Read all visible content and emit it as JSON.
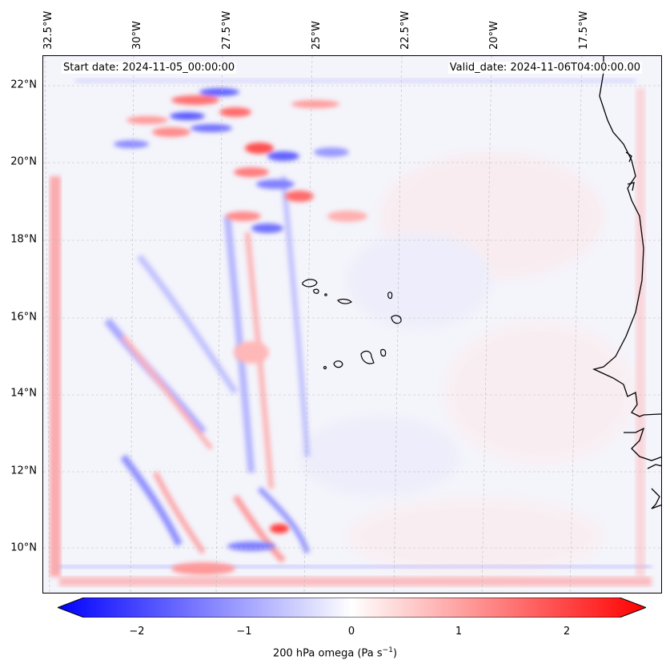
{
  "map": {
    "start_date": "Start date: 2024-11-05_00:00:00",
    "valid_date": "Valid_date: 2024-11-06T04:00:00.00",
    "lat_labels": [
      "22°N",
      "20°N",
      "18°N",
      "16°N",
      "14°N",
      "12°N",
      "10°N"
    ],
    "lon_labels": [
      "32.5°W",
      "30°W",
      "27.5°W",
      "25°W",
      "22.5°W",
      "20°W",
      "17.5°W"
    ]
  },
  "colorbar": {
    "label_main": "200 hPa omega (Pa s",
    "label_exp": "−1",
    "label_end": ")",
    "ticks": [
      "−2",
      "−1",
      "0",
      "1",
      "2"
    ],
    "range": [
      -2.7,
      2.7
    ],
    "colormap": "bwr",
    "colors": {
      "low": "#0000ff",
      "mid": "#ffffff",
      "high": "#ff0000"
    }
  }
}
